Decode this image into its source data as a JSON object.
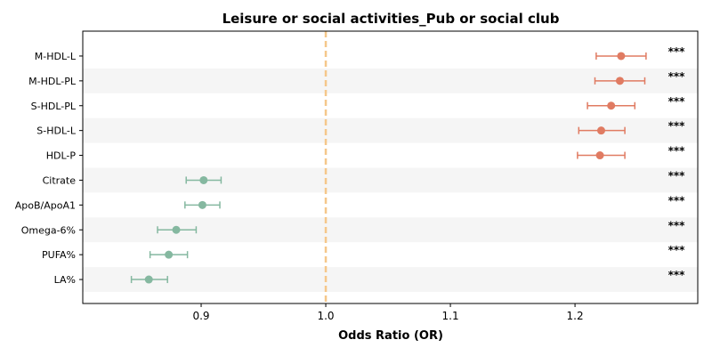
{
  "chart_data": {
    "type": "scatter",
    "title": "Leisure or social activities_Pub or social club",
    "xlabel": "Odds Ratio (OR)",
    "ylabel": "",
    "xlim": [
      0.805,
      1.2985
    ],
    "xticks": [
      "0.9",
      "1.0",
      "1.1",
      "1.2"
    ],
    "reference_line": 1.0,
    "colors": {
      "positive": "#e07b62",
      "negative": "#85b8a0",
      "reference": "#f5c78a",
      "band": "#f5f5f5"
    },
    "points": [
      {
        "label": "M-HDL-L",
        "or": 1.237,
        "lo": 1.217,
        "hi": 1.257,
        "sig": "***"
      },
      {
        "label": "M-HDL-PL",
        "or": 1.236,
        "lo": 1.216,
        "hi": 1.256,
        "sig": "***"
      },
      {
        "label": "S-HDL-PL",
        "or": 1.229,
        "lo": 1.21,
        "hi": 1.248,
        "sig": "***"
      },
      {
        "label": "S-HDL-L",
        "or": 1.221,
        "lo": 1.203,
        "hi": 1.24,
        "sig": "***"
      },
      {
        "label": "HDL-P",
        "or": 1.22,
        "lo": 1.202,
        "hi": 1.24,
        "sig": "***"
      },
      {
        "label": "Citrate",
        "or": 0.902,
        "lo": 0.888,
        "hi": 0.916,
        "sig": "***"
      },
      {
        "label": "ApoB/ApoA1",
        "or": 0.901,
        "lo": 0.887,
        "hi": 0.915,
        "sig": "***"
      },
      {
        "label": "Omega-6%",
        "or": 0.88,
        "lo": 0.865,
        "hi": 0.896,
        "sig": "***"
      },
      {
        "label": "PUFA%",
        "or": 0.874,
        "lo": 0.859,
        "hi": 0.889,
        "sig": "***"
      },
      {
        "label": "LA%",
        "or": 0.858,
        "lo": 0.844,
        "hi": 0.873,
        "sig": "***"
      }
    ]
  }
}
